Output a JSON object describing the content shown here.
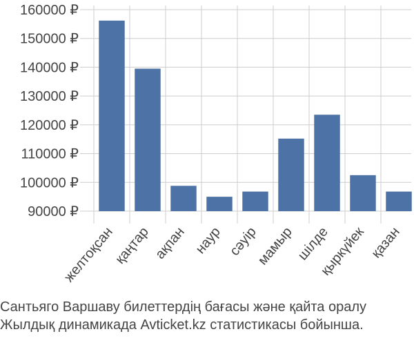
{
  "chart_data": {
    "type": "bar",
    "categories": [
      "желтоқсан",
      "қаңтар",
      "ақпан",
      "наур",
      "сәуір",
      "мамыр",
      "шілде",
      "қыркүйек",
      "қазан"
    ],
    "values": [
      156200,
      139500,
      98800,
      95000,
      96800,
      115200,
      123500,
      102500,
      96800
    ],
    "yticks": [
      90000,
      100000,
      110000,
      120000,
      130000,
      140000,
      150000,
      160000
    ],
    "ytick_labels": [
      "90000 ₽",
      "100000 ₽",
      "110000 ₽",
      "120000 ₽",
      "130000 ₽",
      "140000 ₽",
      "150000 ₽",
      "160000 ₽"
    ],
    "ylim": [
      90000,
      160000
    ],
    "grid": true,
    "bar_color": "#4c72a6",
    "grid_color": "#cccccc",
    "xlabel": "",
    "ylabel": ""
  },
  "caption": {
    "line1": "Сантьяго Варшаву билеттердің бағасы және қайта оралу",
    "line2": "Жылдық динамикада Avticket.kz статистикасы бойынша."
  }
}
